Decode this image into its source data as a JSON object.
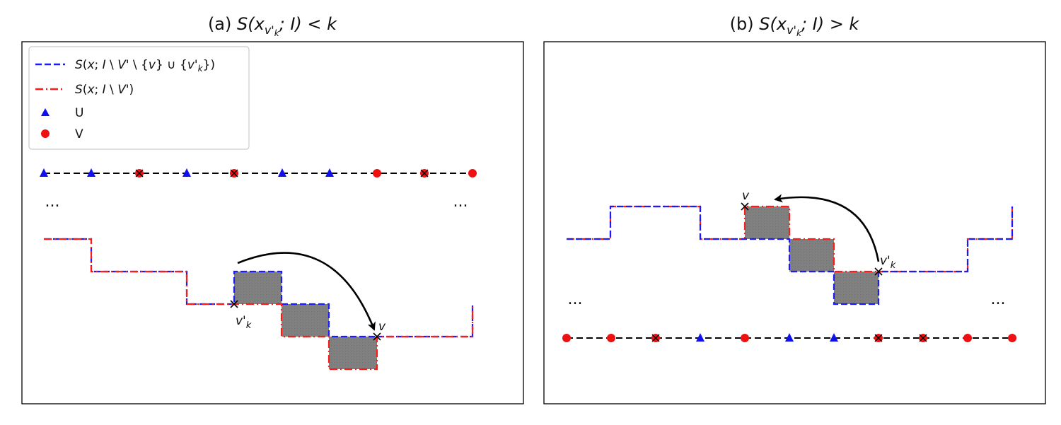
{
  "panel_a": {
    "title_prefix": "(a) ",
    "title_expr": "S(x",
    "title_sub": "v'",
    "title_subsub": "k",
    "title_rest": "; I) < k",
    "label_moved": "v'",
    "label_moved_sub": "k",
    "label_target": "v",
    "ellipsis": "..."
  },
  "panel_b": {
    "title_prefix": "(b) ",
    "title_expr": "S(x",
    "title_sub": "v'",
    "title_subsub": "k",
    "title_rest": "; I) > k",
    "label_moved": "v'",
    "label_moved_sub": "k",
    "label_target": "v",
    "ellipsis": "..."
  },
  "legend": {
    "entries": [
      {
        "label": "S(x; I \\ V' \\ {v} ∪ {v'k})",
        "style": "dashed",
        "color": "#1a1aff"
      },
      {
        "label": "S(x; I \\ V')",
        "style": "dashdot",
        "color": "#ff1a1a"
      },
      {
        "label": "U",
        "marker": "triangle",
        "color": "#1a1aff"
      },
      {
        "label": "V",
        "marker": "circle",
        "color": "#ff1a1a"
      }
    ]
  },
  "colors": {
    "u_marker": "#1010ee",
    "v_marker": "#ee1111",
    "shaded_box": "#808080",
    "axis_line": "#000000"
  }
}
